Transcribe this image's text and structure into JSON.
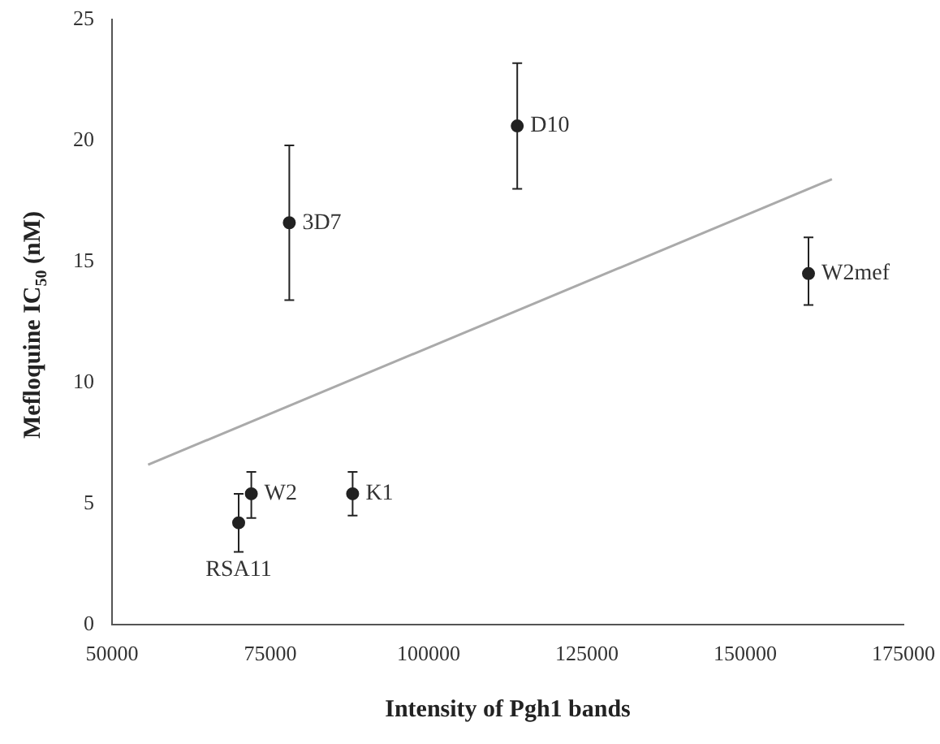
{
  "chart_data": {
    "type": "scatter",
    "xlabel": "Intensity of Pgh1 bands",
    "ylabel": "Mefloquine IC$_{50}$ (nM)",
    "xlim": [
      50000,
      175000
    ],
    "xticks": [
      50000,
      75000,
      100000,
      125000,
      150000,
      175000
    ],
    "ylim": [
      0,
      25
    ],
    "yticks": [
      0,
      5,
      10,
      15,
      20,
      25
    ],
    "grid": false,
    "legend": false,
    "series": [
      {
        "color": "#222222",
        "marker": "circle",
        "x": [
          70000,
          72000,
          88000,
          78000,
          114000,
          160000
        ],
        "values": [
          4.2,
          5.4,
          5.4,
          16.6,
          20.6,
          14.5
        ],
        "errors": [
          [
            3.0,
            5.4
          ],
          [
            4.4,
            6.3
          ],
          [
            4.5,
            6.3
          ],
          [
            13.4,
            19.8
          ],
          [
            18.0,
            23.2
          ],
          [
            13.2,
            16.0
          ]
        ]
      },
      {
        "type": "line",
        "color": "#aaaaaa",
        "x": [
          55700,
          163700
        ],
        "values": [
          6.6,
          18.4
        ]
      }
    ],
    "annotations": [
      {
        "text": "RSA11",
        "x": 70000,
        "y": 4.2
      },
      {
        "text": "W2",
        "x": 72000,
        "y": 5.4
      },
      {
        "text": "K1",
        "x": 88000,
        "y": 5.4
      },
      {
        "text": "3D7",
        "x": 78000,
        "y": 16.6
      },
      {
        "text": "D10",
        "x": 114000,
        "y": 20.6
      },
      {
        "text": "W2mef",
        "x": 160000,
        "y": 14.5
      }
    ]
  }
}
